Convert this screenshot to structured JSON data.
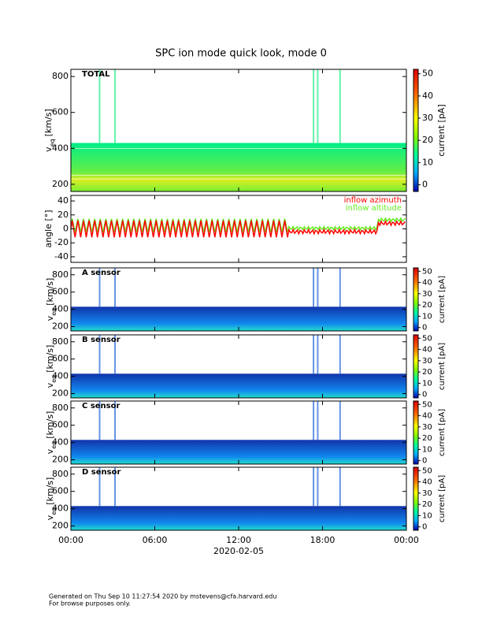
{
  "chart_data": [
    {
      "type": "spectrogram",
      "label": "TOTAL",
      "ylabel": "v",
      "ylabel_sub": "eq",
      "ylabel_unit": "[km/s]",
      "ylim": [
        160,
        840
      ],
      "yticks": [
        200,
        400,
        600,
        800
      ],
      "colorbar": {
        "label": "current [pA]",
        "ylim": [
          -3,
          52
        ],
        "yticks": [
          0,
          10,
          20,
          30,
          40,
          50
        ]
      }
    },
    {
      "type": "line",
      "ylabel": "angle [°]",
      "ylim": [
        -48,
        48
      ],
      "yticks": [
        -40,
        -20,
        0,
        20,
        40
      ],
      "series": [
        {
          "name": "inflow azimuth",
          "color": "#ff0000"
        },
        {
          "name": "inflow altitude",
          "color": "#66ee22"
        }
      ]
    },
    {
      "type": "spectrogram",
      "label": "A sensor",
      "ylabel": "v",
      "ylabel_sub": "eq",
      "ylabel_unit": "[km/s]",
      "ylim": [
        150,
        880
      ],
      "yticks": [
        200,
        400,
        600,
        800
      ],
      "colorbar": {
        "label": "current [pA]",
        "ylim": [
          -3,
          53
        ],
        "yticks": [
          0,
          10,
          20,
          30,
          40,
          50
        ]
      }
    },
    {
      "type": "spectrogram",
      "label": "B sensor",
      "ylabel": "v",
      "ylabel_sub": "eq",
      "ylabel_unit": "[km/s]",
      "ylim": [
        150,
        880
      ],
      "yticks": [
        200,
        400,
        600,
        800
      ],
      "colorbar": {
        "label": "current [pA]",
        "ylim": [
          -3,
          53
        ],
        "yticks": [
          0,
          10,
          20,
          30,
          40,
          50
        ]
      }
    },
    {
      "type": "spectrogram",
      "label": "C sensor",
      "ylabel": "v",
      "ylabel_sub": "eq",
      "ylabel_unit": "[km/s]",
      "ylim": [
        150,
        880
      ],
      "yticks": [
        200,
        400,
        600,
        800
      ],
      "colorbar": {
        "label": "current [pA]",
        "ylim": [
          -3,
          53
        ],
        "yticks": [
          0,
          10,
          20,
          30,
          40,
          50
        ]
      }
    },
    {
      "type": "spectrogram",
      "label": "D sensor",
      "ylabel": "v",
      "ylabel_sub": "eq",
      "ylabel_unit": "[km/s]",
      "ylim": [
        150,
        880
      ],
      "yticks": [
        200,
        400,
        600,
        800
      ],
      "colorbar": {
        "label": "current [pA]",
        "ylim": [
          -3,
          53
        ],
        "yticks": [
          0,
          10,
          20,
          30,
          40,
          50
        ]
      }
    }
  ],
  "title": "SPC ion mode quick look, mode 0",
  "xlabel": "2020-02-05",
  "xlim": [
    0,
    24
  ],
  "xticks": [
    {
      "value": 0,
      "label": "00:00"
    },
    {
      "value": 6,
      "label": "06:00"
    },
    {
      "value": 12,
      "label": "12:00"
    },
    {
      "value": 18,
      "label": "18:00"
    },
    {
      "value": 24,
      "label": "00:00"
    }
  ],
  "footer": [
    "Generated on Thu Sep 10 11:27:54 2020 by mstevens@cfa.harvard.edu",
    "For browse purposes only."
  ]
}
